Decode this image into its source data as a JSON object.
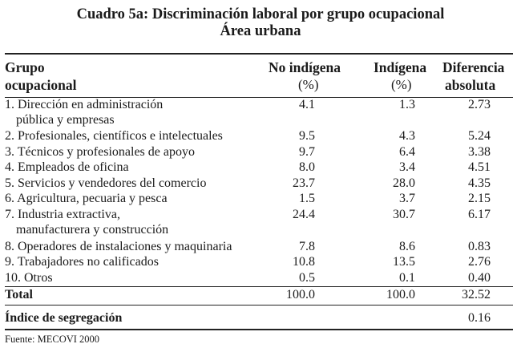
{
  "title": "Cuadro 5a: Discriminación laboral por grupo ocupacional",
  "subtitle": "Área urbana",
  "headers": {
    "group_line1": "Grupo",
    "group_line2": "ocupacional",
    "no_indigena": "No indígena",
    "no_indigena_unit": "(%)",
    "indigena": "Indígena",
    "indigena_unit": "(%)",
    "diferencia_line1": "Diferencia",
    "diferencia_line2": "absoluta"
  },
  "rows": [
    {
      "label": "1. Dirección en administración",
      "label2": "pública y empresas",
      "no_indigena": "4.1",
      "indigena": "1.3",
      "diferencia": "2.73"
    },
    {
      "label": "2. Profesionales, científicos e intelectuales",
      "no_indigena": "9.5",
      "indigena": "4.3",
      "diferencia": "5.24"
    },
    {
      "label": "3. Técnicos y profesionales de apoyo",
      "no_indigena": "9.7",
      "indigena": "6.4",
      "diferencia": "3.38"
    },
    {
      "label": "4. Empleados de oficina",
      "no_indigena": "8.0",
      "indigena": "3.4",
      "diferencia": "4.51"
    },
    {
      "label": "5. Servicios y vendedores del comercio",
      "no_indigena": "23.7",
      "indigena": "28.0",
      "diferencia": "4.35"
    },
    {
      "label": "6. Agricultura, pecuaria y pesca",
      "no_indigena": "1.5",
      "indigena": "3.7",
      "diferencia": "2.15"
    },
    {
      "label": "7. Industria extractiva,",
      "label2": "manufacturera y construcción",
      "no_indigena": "24.4",
      "indigena": "30.7",
      "diferencia": "6.17"
    },
    {
      "label": "8. Operadores de instalaciones y maquinaria",
      "no_indigena": "7.8",
      "indigena": "8.6",
      "diferencia": "0.83"
    },
    {
      "label": "9. Trabajadores no calificados",
      "no_indigena": "10.8",
      "indigena": "13.5",
      "diferencia": "2.76"
    },
    {
      "label": "10. Otros",
      "no_indigena": "0.5",
      "indigena": "0.1",
      "diferencia": "0.40"
    }
  ],
  "total": {
    "label": "Total",
    "no_indigena": "100.0",
    "indigena": "100.0",
    "diferencia": "32.52"
  },
  "segregation": {
    "label": "Índice de segregación",
    "value": "0.16"
  },
  "source": "Fuente: MECOVI 2000"
}
